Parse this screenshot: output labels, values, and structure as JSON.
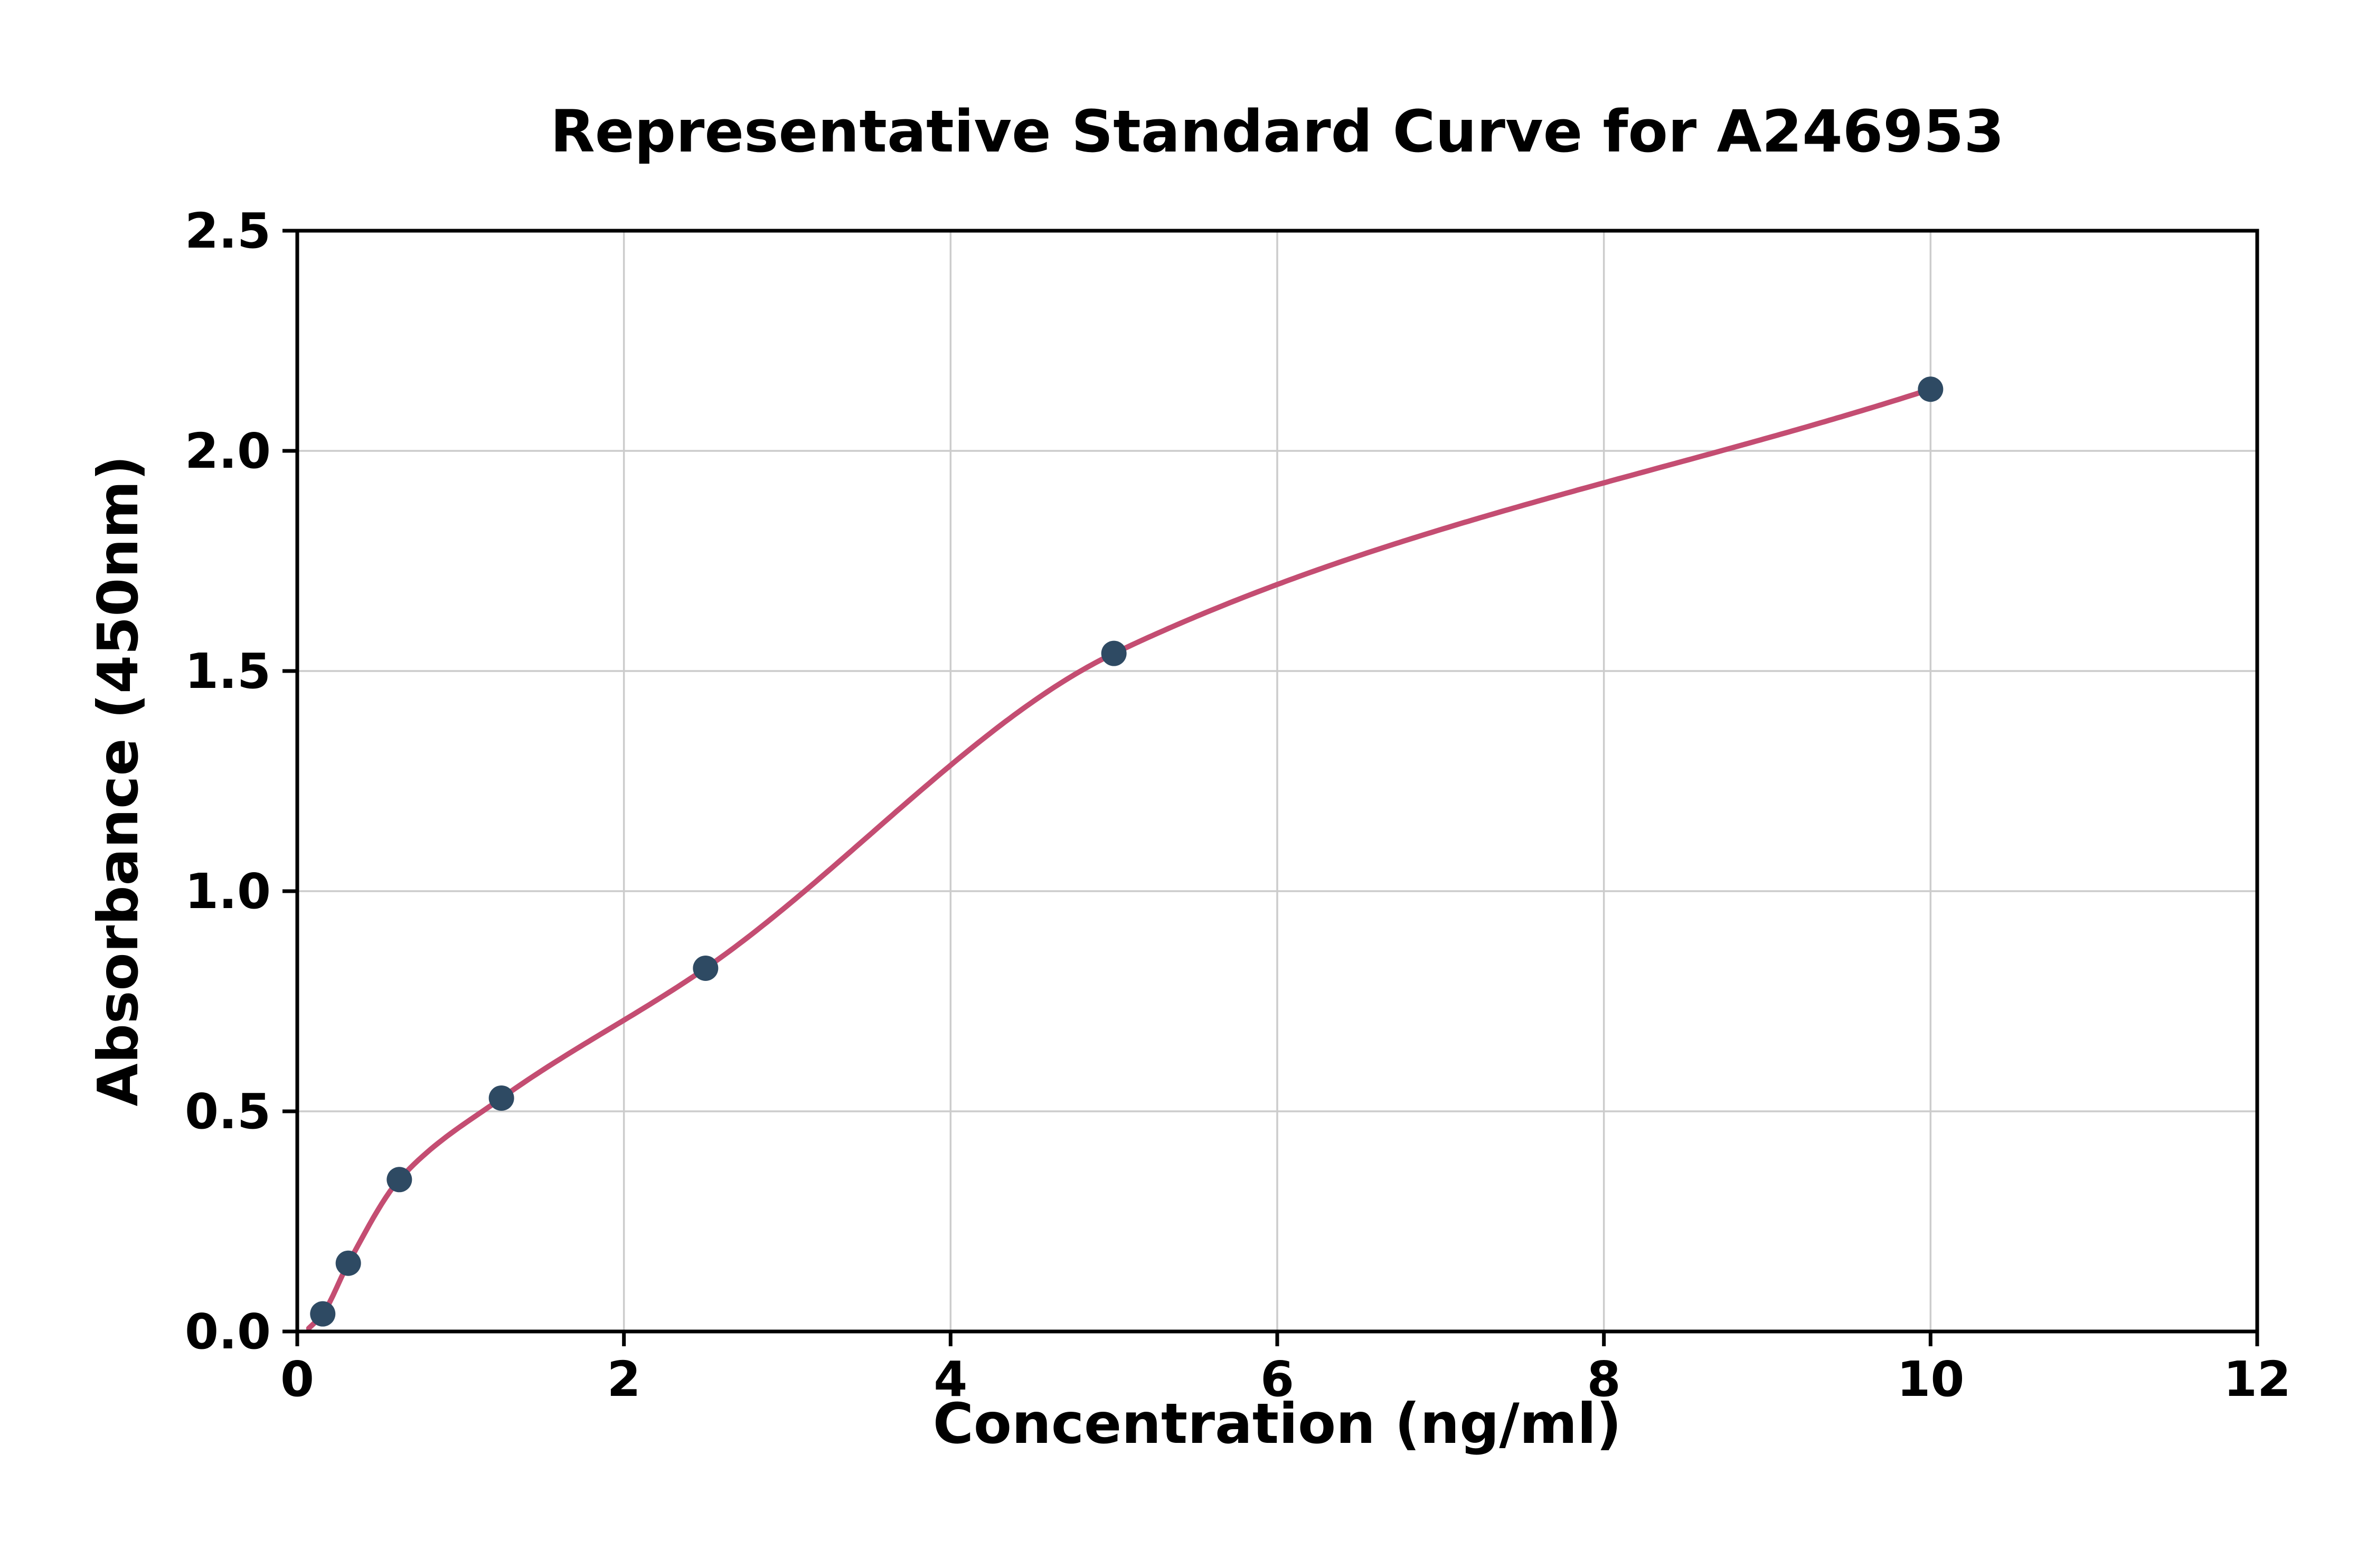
{
  "chart_data": {
    "type": "scatter",
    "title": "Representative Standard Curve for A246953",
    "xlabel": "Concentration (ng/ml)",
    "ylabel": "Absorbance (450nm)",
    "xlim": [
      0,
      12
    ],
    "ylim": [
      0,
      2.5
    ],
    "xticks": [
      0,
      2,
      4,
      6,
      8,
      10,
      12
    ],
    "xtick_labels": [
      "0",
      "2",
      "4",
      "6",
      "8",
      "10",
      "12"
    ],
    "yticks": [
      0.0,
      0.5,
      1.0,
      1.5,
      2.0,
      2.5
    ],
    "ytick_labels": [
      "0.0",
      "0.5",
      "1.0",
      "1.5",
      "2.0",
      "2.5"
    ],
    "grid": true,
    "legend": "none",
    "points": {
      "x": [
        0.156,
        0.3125,
        0.625,
        1.25,
        2.5,
        5,
        10
      ],
      "y": [
        0.04,
        0.155,
        0.345,
        0.53,
        0.825,
        1.54,
        2.14
      ]
    },
    "fit_curve": {
      "style": "smooth-through-points",
      "anchor_x": 0.05,
      "anchor_y": 0.0,
      "x_start": 0.07,
      "x_end": 10
    },
    "colors": {
      "points": "#2e4a63",
      "curve": "#c44d72",
      "grid": "#cccccc",
      "axes": "#000000",
      "background": "#ffffff"
    }
  }
}
